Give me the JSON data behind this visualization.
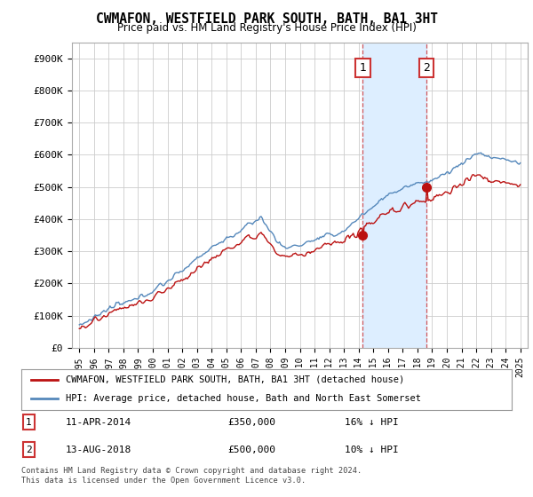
{
  "title": "CWMAFON, WESTFIELD PARK SOUTH, BATH, BA1 3HT",
  "subtitle": "Price paid vs. HM Land Registry's House Price Index (HPI)",
  "ylabel_ticks": [
    "£0",
    "£100K",
    "£200K",
    "£300K",
    "£400K",
    "£500K",
    "£600K",
    "£700K",
    "£800K",
    "£900K"
  ],
  "ytick_vals": [
    0,
    100000,
    200000,
    300000,
    400000,
    500000,
    600000,
    700000,
    800000,
    900000
  ],
  "ylim": [
    0,
    950000
  ],
  "xlim_start": 1994.5,
  "xlim_end": 2025.5,
  "hpi_color": "#5588bb",
  "price_color": "#bb1111",
  "shade_color": "#ddeeff",
  "marker1_x": 2014.28,
  "marker1_y": 350000,
  "marker2_x": 2018.62,
  "marker2_y": 500000,
  "legend_label1": "CWMAFON, WESTFIELD PARK SOUTH, BATH, BA1 3HT (detached house)",
  "legend_label2": "HPI: Average price, detached house, Bath and North East Somerset",
  "annotation1_num": "1",
  "annotation1_date": "11-APR-2014",
  "annotation1_price": "£350,000",
  "annotation1_hpi": "16% ↓ HPI",
  "annotation2_num": "2",
  "annotation2_date": "13-AUG-2018",
  "annotation2_price": "£500,000",
  "annotation2_hpi": "10% ↓ HPI",
  "footer": "Contains HM Land Registry data © Crown copyright and database right 2024.\nThis data is licensed under the Open Government Licence v3.0.",
  "background_color": "#ffffff",
  "grid_color": "#cccccc"
}
